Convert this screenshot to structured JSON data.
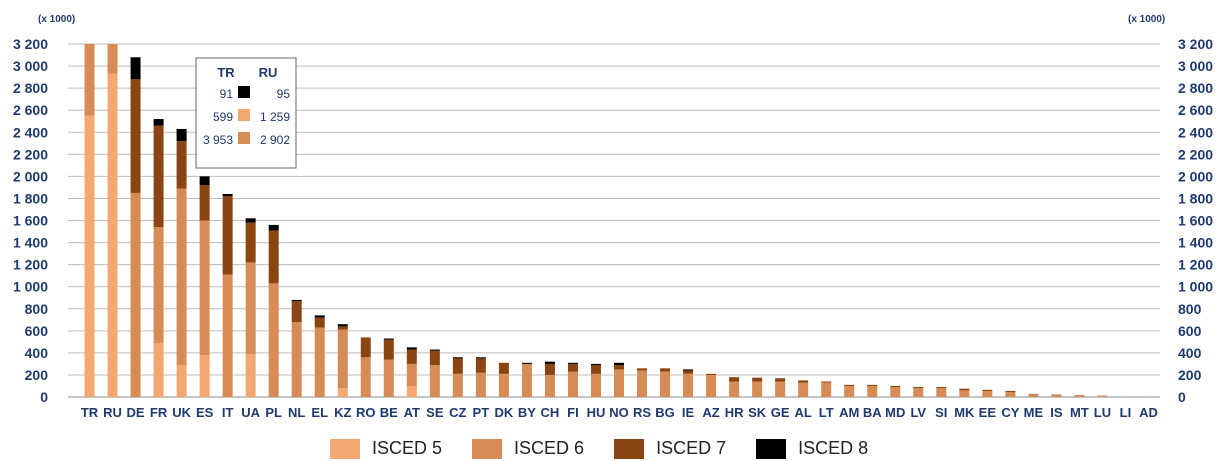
{
  "chart_data": {
    "type": "bar",
    "stacked": true,
    "unit_left": "(x 1000)",
    "unit_right": "(x 1000)",
    "ylim": [
      0,
      3200
    ],
    "yticks": [
      0,
      200,
      400,
      600,
      800,
      1000,
      1200,
      1400,
      1600,
      1800,
      2000,
      2200,
      2400,
      2600,
      2800,
      3000,
      3200
    ],
    "ytick_labels": [
      "0",
      "200",
      "400",
      "600",
      "800",
      "1 000",
      "1 200",
      "1 400",
      "1 600",
      "1 800",
      "2 000",
      "2 200",
      "2 400",
      "2 600",
      "2 800",
      "3 000",
      "3 200"
    ],
    "grid": true,
    "categories": [
      "TR",
      "RU",
      "DE",
      "FR",
      "UK",
      "ES",
      "IT",
      "UA",
      "PL",
      "NL",
      "EL",
      "KZ",
      "RO",
      "BE",
      "AT",
      "SE",
      "CZ",
      "PT",
      "DK",
      "BY",
      "CH",
      "FI",
      "HU",
      "NO",
      "RS",
      "BG",
      "IE",
      "AZ",
      "HR",
      "SK",
      "GE",
      "AL",
      "LT",
      "AM",
      "BA",
      "MD",
      "LV",
      "SI",
      "MK",
      "EE",
      "CY",
      "ME",
      "IS",
      "MT",
      "LU",
      "LI",
      "AD"
    ],
    "series": [
      {
        "name": "ISCED 5",
        "color": "#f4a870",
        "values": [
          2550,
          2930,
          0,
          490,
          290,
          380,
          0,
          390,
          0,
          0,
          0,
          80,
          0,
          0,
          100,
          0,
          0,
          0,
          0,
          0,
          0,
          0,
          0,
          0,
          0,
          0,
          0,
          0,
          0,
          0,
          0,
          0,
          0,
          0,
          0,
          0,
          0,
          0,
          0,
          0,
          0,
          0,
          0,
          0,
          0,
          0,
          0
        ]
      },
      {
        "name": "ISCED 6",
        "color": "#d68c54",
        "values": [
          650,
          270,
          1850,
          1050,
          1600,
          1220,
          1110,
          830,
          1030,
          680,
          630,
          530,
          360,
          340,
          200,
          290,
          210,
          220,
          210,
          300,
          200,
          230,
          210,
          250,
          240,
          230,
          210,
          200,
          140,
          140,
          140,
          130,
          130,
          100,
          100,
          90,
          80,
          80,
          60,
          55,
          45,
          25,
          18,
          15,
          12,
          5,
          3
        ]
      },
      {
        "name": "ISCED 7",
        "color": "#8b4513",
        "values": [
          0,
          0,
          1030,
          920,
          430,
          320,
          710,
          360,
          480,
          190,
          90,
          30,
          180,
          180,
          130,
          130,
          140,
          130,
          100,
          0,
          100,
          70,
          80,
          40,
          20,
          30,
          30,
          10,
          40,
          35,
          30,
          20,
          10,
          10,
          10,
          10,
          10,
          10,
          15,
          10,
          10,
          3,
          4,
          2,
          1,
          0,
          0
        ]
      },
      {
        "name": "ISCED 8",
        "color": "#000000",
        "values": [
          0,
          0,
          200,
          60,
          110,
          80,
          20,
          40,
          50,
          10,
          20,
          20,
          0,
          10,
          20,
          10,
          10,
          10,
          0,
          10,
          20,
          10,
          10,
          20,
          0,
          0,
          10,
          0,
          0,
          0,
          0,
          0,
          0,
          0,
          0,
          0,
          0,
          0,
          0,
          0,
          0,
          0,
          0,
          0,
          0,
          0,
          0
        ]
      }
    ],
    "inset": {
      "headers": [
        "TR",
        "RU"
      ],
      "rows": [
        {
          "left": "91",
          "color": "#000000",
          "right": "95"
        },
        {
          "left": "599",
          "color": "#f4a870",
          "right": "1 259"
        },
        {
          "left": "3 953",
          "color": "#d68c54",
          "right": "2 902"
        }
      ]
    },
    "legend_position": "bottom"
  }
}
